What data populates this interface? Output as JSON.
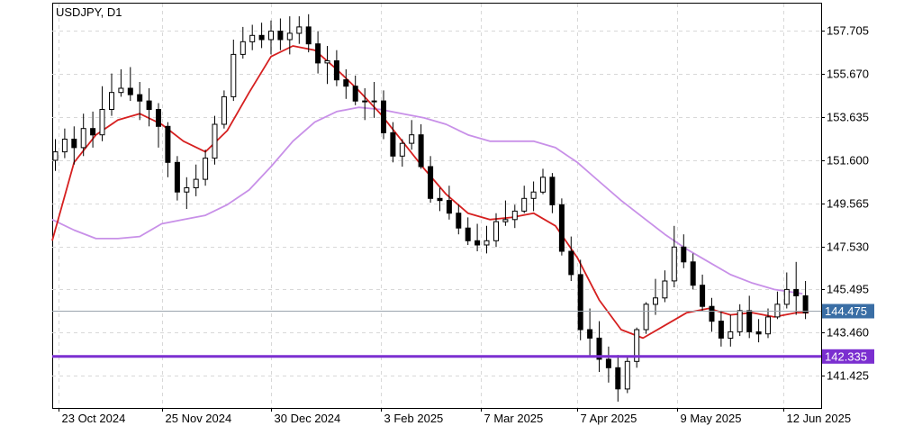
{
  "chart_data": {
    "type": "candlestick",
    "symbol_label": "USDJPY, D1",
    "y_ticks": [
      157.705,
      155.67,
      153.635,
      151.6,
      149.565,
      147.53,
      145.495,
      143.46,
      141.425
    ],
    "ylim": [
      139.9,
      159.0
    ],
    "x_dates": [
      "23 Oct 2024",
      "25 Nov 2024",
      "30 Dec 2024",
      "3 Feb 2025",
      "7 Mar 2025",
      "7 Apr 2025",
      "9 May 2025",
      "12 Jun 2025"
    ],
    "xlim": [
      "2024-10-21",
      "2025-06-24"
    ],
    "grid": true,
    "price_line": {
      "value": 144.475,
      "label": "144.475",
      "color": "#9aa4ad",
      "badge_color": "#3a6ea5"
    },
    "horizontal_line": {
      "value": 142.335,
      "label": "142.335",
      "color": "#7b2fd0"
    },
    "colors": {
      "candle": "#000000",
      "ma_fast": "#d62020",
      "ma_slow": "#c890e8",
      "grid": "#d8d8d8"
    },
    "series": [
      {
        "type": "ma_fast",
        "x": [
          "2024-10-21",
          "2024-10-28",
          "2024-11-04",
          "2024-11-11",
          "2024-11-18",
          "2024-11-25",
          "2024-12-02",
          "2024-12-09",
          "2024-12-16",
          "2024-12-23",
          "2024-12-30",
          "2025-01-06",
          "2025-01-13",
          "2025-01-20",
          "2025-01-27",
          "2025-02-03",
          "2025-02-10",
          "2025-02-17",
          "2025-02-24",
          "2025-03-03",
          "2025-03-10",
          "2025-03-17",
          "2025-03-24",
          "2025-03-31",
          "2025-04-07",
          "2025-04-14",
          "2025-04-21",
          "2025-04-28",
          "2025-05-05",
          "2025-05-12",
          "2025-05-19",
          "2025-05-26",
          "2025-06-02",
          "2025-06-09",
          "2025-06-16",
          "2025-06-20"
        ],
        "y": [
          147.8,
          151.5,
          152.8,
          153.5,
          153.8,
          153.3,
          152.5,
          152.0,
          153.0,
          154.8,
          156.5,
          157.0,
          156.8,
          155.9,
          154.9,
          153.8,
          152.5,
          151.2,
          150.0,
          149.1,
          148.8,
          148.9,
          149.1,
          148.5,
          147.0,
          145.0,
          143.6,
          143.2,
          143.8,
          144.4,
          144.6,
          144.3,
          144.4,
          144.2,
          144.4,
          144.4
        ]
      },
      {
        "type": "ma_slow",
        "x": [
          "2024-10-21",
          "2024-10-28",
          "2024-11-04",
          "2024-11-11",
          "2024-11-18",
          "2024-11-25",
          "2024-12-02",
          "2024-12-09",
          "2024-12-16",
          "2024-12-23",
          "2024-12-30",
          "2025-01-06",
          "2025-01-13",
          "2025-01-20",
          "2025-01-27",
          "2025-02-03",
          "2025-02-10",
          "2025-02-17",
          "2025-02-24",
          "2025-03-03",
          "2025-03-10",
          "2025-03-17",
          "2025-03-24",
          "2025-03-31",
          "2025-04-07",
          "2025-04-14",
          "2025-04-21",
          "2025-04-28",
          "2025-05-05",
          "2025-05-12",
          "2025-05-19",
          "2025-05-26",
          "2025-06-02",
          "2025-06-09",
          "2025-06-18"
        ],
        "y": [
          148.8,
          148.3,
          147.9,
          147.9,
          148.0,
          148.6,
          148.8,
          149.0,
          149.5,
          150.2,
          151.3,
          152.5,
          153.4,
          153.9,
          154.1,
          154.0,
          153.8,
          153.6,
          153.3,
          152.8,
          152.5,
          152.5,
          152.5,
          152.2,
          151.5,
          150.6,
          149.7,
          148.9,
          148.1,
          147.4,
          146.8,
          146.2,
          145.8,
          145.5,
          145.3
        ]
      },
      {
        "type": "candles",
        "x": [
          "2024-10-22",
          "2024-10-25",
          "2024-10-28",
          "2024-10-31",
          "2024-11-03",
          "2024-11-06",
          "2024-11-09",
          "2024-11-12",
          "2024-11-15",
          "2024-11-18",
          "2024-11-21",
          "2024-11-24",
          "2024-11-27",
          "2024-11-30",
          "2024-12-03",
          "2024-12-06",
          "2024-12-09",
          "2024-12-12",
          "2024-12-15",
          "2024-12-18",
          "2024-12-21",
          "2024-12-24",
          "2024-12-27",
          "2024-12-30",
          "2025-01-02",
          "2025-01-05",
          "2025-01-08",
          "2025-01-11",
          "2025-01-14",
          "2025-01-17",
          "2025-01-20",
          "2025-01-23",
          "2025-01-26",
          "2025-01-29",
          "2025-02-01",
          "2025-02-04",
          "2025-02-07",
          "2025-02-10",
          "2025-02-13",
          "2025-02-16",
          "2025-02-19",
          "2025-02-22",
          "2025-02-25",
          "2025-02-28",
          "2025-03-03",
          "2025-03-06",
          "2025-03-09",
          "2025-03-12",
          "2025-03-15",
          "2025-03-18",
          "2025-03-21",
          "2025-03-24",
          "2025-03-27",
          "2025-03-30",
          "2025-04-02",
          "2025-04-05",
          "2025-04-08",
          "2025-04-11",
          "2025-04-14",
          "2025-04-17",
          "2025-04-20",
          "2025-04-23",
          "2025-04-26",
          "2025-04-29",
          "2025-05-02",
          "2025-05-05",
          "2025-05-08",
          "2025-05-11",
          "2025-05-14",
          "2025-05-17",
          "2025-05-20",
          "2025-05-23",
          "2025-05-26",
          "2025-05-29",
          "2025-06-01",
          "2025-06-04",
          "2025-06-07",
          "2025-06-10",
          "2025-06-13",
          "2025-06-16",
          "2025-06-19"
        ],
        "open": [
          151.6,
          152.0,
          152.6,
          152.2,
          153.1,
          152.8,
          154.0,
          154.8,
          155.0,
          154.7,
          154.4,
          154.0,
          153.2,
          151.5,
          150.1,
          150.3,
          150.7,
          151.7,
          153.3,
          154.6,
          156.6,
          157.2,
          157.5,
          157.3,
          157.7,
          157.3,
          157.6,
          157.9,
          157.1,
          156.2,
          156.3,
          155.4,
          155.1,
          154.4,
          154.4,
          154.4,
          152.9,
          151.8,
          152.4,
          152.8,
          151.3,
          149.8,
          149.7,
          149.1,
          148.4,
          147.8,
          147.6,
          147.8,
          148.7,
          148.8,
          149.2,
          149.8,
          150.1,
          150.8,
          149.5,
          147.3,
          146.2,
          143.6,
          143.2,
          142.2,
          141.8,
          140.8,
          142.1,
          143.6,
          144.8,
          145.1,
          145.9,
          147.5,
          146.8,
          145.7,
          144.7,
          144.0,
          143.2,
          143.5,
          144.5,
          143.5,
          143.4,
          144.2,
          144.8,
          145.5,
          145.2
        ],
        "high": [
          152.6,
          153.1,
          153.2,
          153.8,
          153.9,
          155.1,
          155.7,
          155.9,
          156.0,
          155.3,
          155.0,
          154.3,
          153.4,
          151.8,
          150.8,
          151.4,
          152.1,
          153.7,
          154.9,
          157.3,
          157.9,
          158.0,
          158.1,
          158.2,
          158.3,
          158.4,
          158.4,
          158.5,
          157.7,
          157.0,
          156.8,
          155.9,
          155.6,
          155.0,
          155.3,
          154.9,
          153.4,
          152.6,
          153.5,
          153.3,
          151.8,
          150.3,
          150.4,
          149.5,
          148.9,
          148.6,
          148.5,
          149.1,
          149.7,
          149.5,
          150.4,
          150.6,
          151.2,
          151.0,
          149.8,
          148.0,
          146.9,
          144.6,
          144.0,
          142.8,
          142.4,
          142.3,
          143.7,
          144.9,
          146.0,
          146.4,
          148.5,
          148.1,
          147.2,
          146.2,
          145.1,
          144.5,
          144.3,
          144.8,
          145.2,
          144.1,
          144.6,
          145.4,
          146.3,
          146.8,
          145.9
        ],
        "low": [
          151.1,
          151.7,
          151.4,
          151.8,
          152.2,
          152.5,
          153.7,
          154.6,
          154.4,
          153.5,
          153.2,
          152.2,
          150.8,
          149.7,
          149.3,
          149.9,
          150.4,
          151.4,
          153.1,
          154.4,
          156.4,
          156.8,
          156.9,
          156.6,
          156.8,
          156.6,
          157.1,
          156.7,
          155.7,
          155.2,
          155.1,
          154.5,
          154.2,
          153.5,
          153.6,
          152.6,
          151.5,
          151.3,
          152.1,
          151.2,
          149.6,
          149.2,
          148.8,
          148.1,
          147.6,
          147.3,
          147.2,
          147.5,
          148.5,
          148.4,
          149.1,
          149.2,
          150.0,
          149.1,
          147.1,
          145.9,
          143.1,
          142.3,
          141.6,
          141.1,
          140.2,
          140.6,
          141.8,
          143.4,
          144.3,
          144.9,
          145.6,
          146.5,
          145.5,
          144.5,
          143.5,
          142.8,
          142.8,
          143.3,
          143.2,
          143.0,
          143.2,
          144.1,
          144.6,
          144.3,
          144.1
        ],
        "close": [
          152.0,
          152.6,
          152.2,
          153.1,
          152.8,
          154.0,
          154.8,
          155.0,
          154.7,
          154.4,
          154.0,
          153.2,
          151.5,
          150.1,
          150.3,
          150.7,
          151.7,
          153.3,
          154.6,
          156.6,
          157.2,
          157.5,
          157.3,
          157.7,
          157.3,
          157.6,
          157.9,
          157.1,
          156.2,
          156.3,
          155.4,
          155.1,
          154.4,
          154.4,
          154.4,
          152.9,
          151.8,
          152.4,
          152.8,
          151.3,
          149.8,
          149.7,
          149.1,
          148.4,
          147.8,
          147.6,
          147.8,
          148.7,
          148.8,
          149.2,
          149.8,
          150.1,
          150.8,
          149.5,
          147.3,
          146.2,
          143.6,
          143.2,
          142.2,
          141.8,
          140.8,
          142.1,
          143.6,
          144.8,
          145.1,
          145.9,
          147.5,
          146.8,
          145.7,
          144.7,
          144.0,
          143.2,
          143.5,
          144.5,
          143.5,
          143.4,
          144.2,
          144.8,
          145.5,
          145.2,
          144.4
        ]
      }
    ]
  }
}
